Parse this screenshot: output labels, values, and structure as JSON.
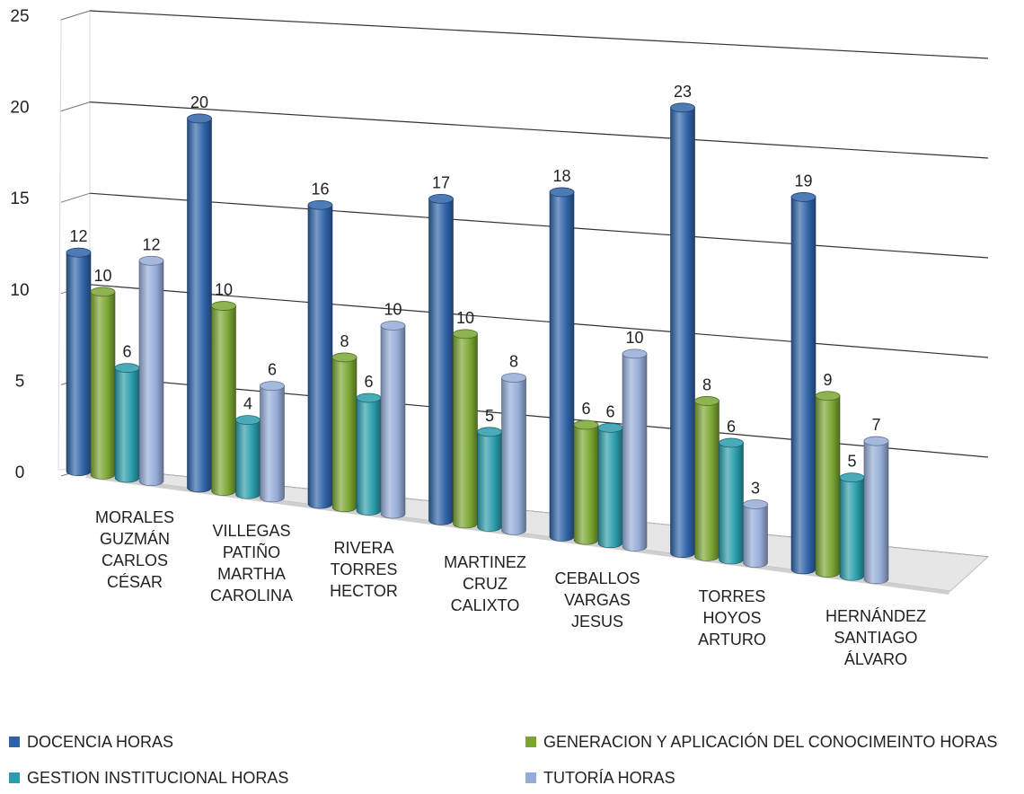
{
  "chart_data": {
    "type": "bar",
    "title": "",
    "xlabel": "",
    "ylabel": "",
    "ylim": [
      0,
      25
    ],
    "yticks": [
      0,
      5,
      10,
      15,
      20,
      25
    ],
    "grid": true,
    "legend_position": "bottom",
    "categories": [
      "MORALES GUZMÁN CARLOS CÉSAR",
      "VILLEGAS PATIÑO MARTHA CAROLINA",
      "RIVERA TORRES HECTOR",
      "MARTINEZ CRUZ CALIXTO",
      "CEBALLOS VARGAS JESUS",
      "TORRES HOYOS ARTURO",
      "HERNÁNDEZ SANTIAGO ÁLVARO"
    ],
    "category_lines": [
      [
        "MORALES",
        "GUZMÁN",
        "CARLOS",
        "CÉSAR"
      ],
      [
        "VILLEGAS",
        "PATIÑO",
        "MARTHA",
        "CAROLINA"
      ],
      [
        "RIVERA",
        "TORRES",
        "HECTOR"
      ],
      [
        "MARTINEZ",
        "CRUZ",
        "CALIXTO"
      ],
      [
        "CEBALLOS",
        "VARGAS",
        "JESUS"
      ],
      [
        "TORRES",
        "HOYOS",
        "ARTURO"
      ],
      [
        "HERNÁNDEZ",
        "SANTIAGO",
        "ÁLVARO"
      ]
    ],
    "series": [
      {
        "name": "DOCENCIA HORAS",
        "color": "#2f63a8",
        "values": [
          12,
          20,
          16,
          17,
          18,
          23,
          19
        ]
      },
      {
        "name": "GENERACION Y APLICACIÓN DEL CONOCIMEINTO HORAS",
        "color": "#7aa532",
        "values": [
          10,
          10,
          8,
          10,
          6,
          8,
          9
        ]
      },
      {
        "name": "GESTION INSTITUCIONAL HORAS",
        "color": "#2a9cab",
        "values": [
          6,
          4,
          6,
          5,
          6,
          6,
          5
        ]
      },
      {
        "name": "TUTORÍA HORAS",
        "color": "#95acd8",
        "values": [
          12,
          6,
          10,
          8,
          10,
          3,
          7
        ]
      }
    ]
  }
}
